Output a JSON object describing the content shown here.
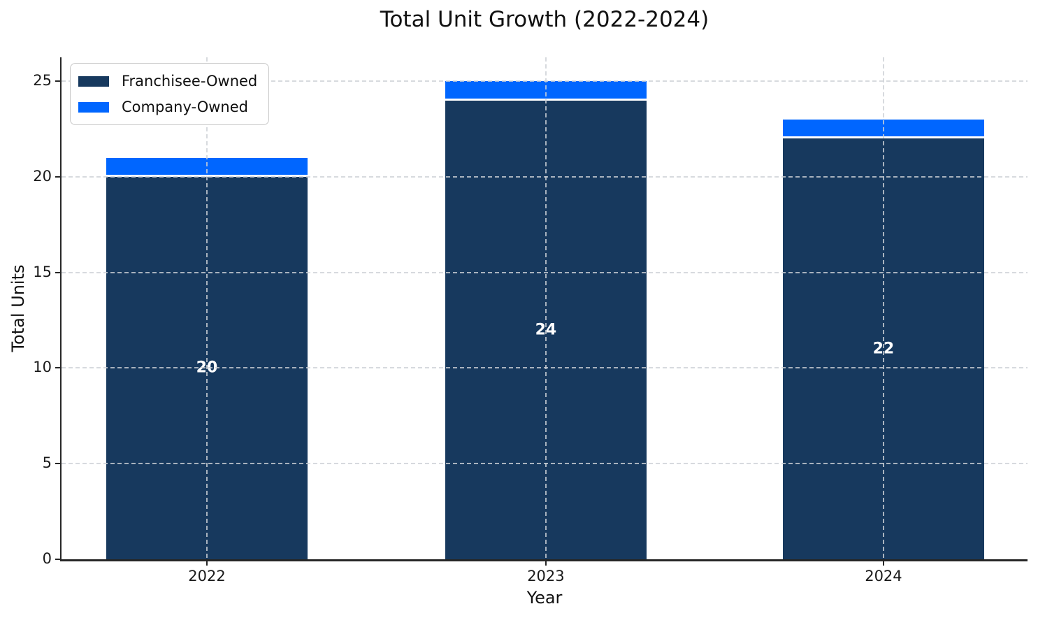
{
  "chart_data": {
    "type": "bar",
    "stacked": true,
    "title": "Total Unit Growth (2022-2024)",
    "xlabel": "Year",
    "ylabel": "Total Units",
    "categories": [
      "2022",
      "2023",
      "2024"
    ],
    "series": [
      {
        "name": "Franchisee-Owned",
        "color": "#17395e",
        "values": [
          20,
          24,
          22
        ]
      },
      {
        "name": "Company-Owned",
        "color": "#0066ff",
        "values": [
          1,
          1,
          1
        ]
      }
    ],
    "data_labels": {
      "on_series": "Franchisee-Owned",
      "values": [
        "20",
        "24",
        "22"
      ],
      "color": "#ffffff"
    },
    "yticks": [
      "0",
      "5",
      "10",
      "15",
      "20",
      "25"
    ],
    "ylim": [
      0,
      26.25
    ],
    "grid": "dashed light-gray horizontal lines at y ticks and vertical lines at bar centers, drawn over bars",
    "legend_position": "upper-left",
    "bar_edge_color": "#ffffff",
    "spine_color": "#262626",
    "gridline_color": "#cdd1d6"
  }
}
